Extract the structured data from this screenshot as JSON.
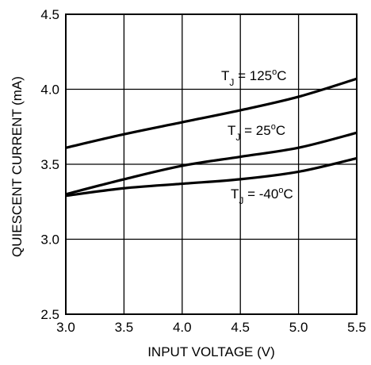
{
  "chart_data": {
    "type": "line",
    "title": "",
    "xlabel": "INPUT VOLTAGE (V)",
    "ylabel": "QUIESCENT CURRENT (mA)",
    "xlim": [
      3.0,
      5.5
    ],
    "ylim": [
      2.5,
      4.5
    ],
    "grid": true,
    "x_ticks": [
      "3.0",
      "3.5",
      "4.0",
      "4.5",
      "5.0",
      "5.5"
    ],
    "y_ticks": [
      "2.5",
      "3.0",
      "3.5",
      "4.0",
      "4.5"
    ],
    "series": [
      {
        "name": "TJ = 125oC",
        "label": {
          "prefix": "T",
          "sub": "J",
          "mid": " = 125",
          "sup": "o",
          "suffix": "C"
        },
        "x": [
          3.0,
          3.5,
          4.0,
          4.5,
          5.0,
          5.5
        ],
        "y": [
          3.61,
          3.7,
          3.78,
          3.86,
          3.95,
          4.07
        ]
      },
      {
        "name": "TJ = 25oC",
        "label": {
          "prefix": "T",
          "sub": "J",
          "mid": " = 25",
          "sup": "o",
          "suffix": "C"
        },
        "x": [
          3.0,
          3.5,
          4.0,
          4.5,
          5.0,
          5.5
        ],
        "y": [
          3.3,
          3.4,
          3.49,
          3.55,
          3.61,
          3.71
        ]
      },
      {
        "name": "TJ = -40oC",
        "label": {
          "prefix": "T",
          "sub": "J",
          "mid": " = -40",
          "sup": "o",
          "suffix": "C"
        },
        "x": [
          3.0,
          3.5,
          4.0,
          4.5,
          5.0,
          5.5
        ],
        "y": [
          3.29,
          3.34,
          3.37,
          3.4,
          3.45,
          3.54
        ]
      }
    ]
  }
}
